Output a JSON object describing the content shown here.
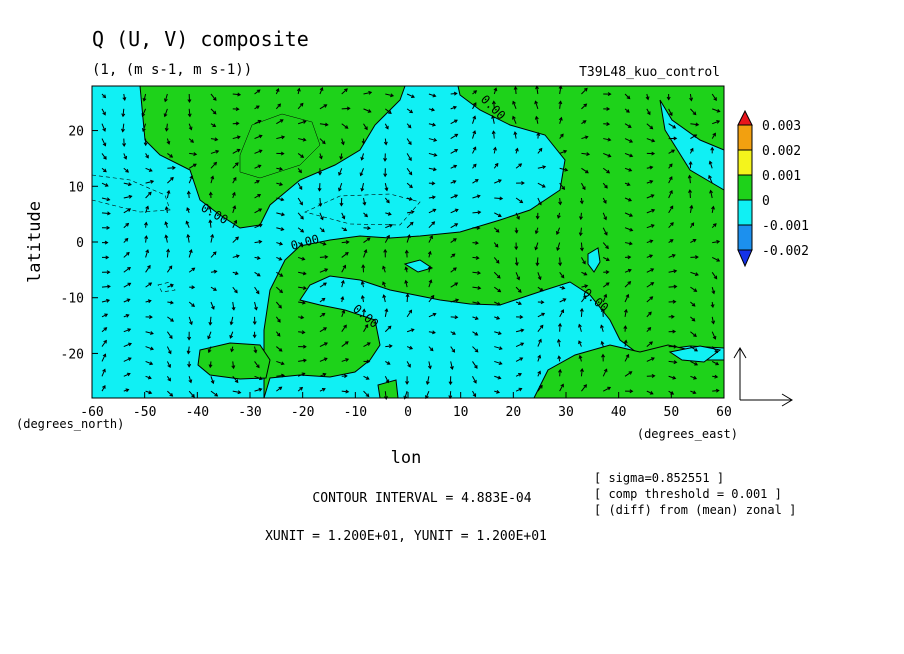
{
  "chart_data": {
    "type": "heatmap",
    "title": "Q (U, V) composite",
    "subtitle": "(1, (m s-1, m s-1))",
    "run_label": "T39L48_kuo_control",
    "xlabel": "lon",
    "ylabel": "latitude",
    "x_unit": "(degrees_east)",
    "y_unit": "(degrees_north)",
    "xlim": [
      -60,
      60
    ],
    "ylim": [
      -28,
      28
    ],
    "x_ticks": [
      "-60",
      "-50",
      "-40",
      "-30",
      "-20",
      "-10",
      "0",
      "10",
      "20",
      "30",
      "40",
      "50",
      "60"
    ],
    "y_ticks": [
      "20",
      "10",
      "0",
      "-10",
      "-20"
    ],
    "colorbar": {
      "labels": [
        "0.003",
        "0.002",
        "0.001",
        "0",
        "-0.001",
        "-0.002"
      ],
      "colors": [
        "#e8141c",
        "#f2a010",
        "#f4f41c",
        "#1ed21a",
        "#10f0f4",
        "#1c90ee",
        "#1432e8"
      ]
    },
    "contour_label": "0.00",
    "contour_interval": "CONTOUR INTERVAL = 4.883E-04",
    "units_note": "XUNIT = 1.200E+01, YUNIT = 1.200E+01",
    "notes": [
      "[ sigma=0.852551 ]",
      "[ comp threshold = 0.001 ]",
      "[ (diff) from (mean) zonal ]"
    ],
    "field_colors": {
      "positive": "#1ed21a",
      "negative": "#10f0f4"
    }
  }
}
